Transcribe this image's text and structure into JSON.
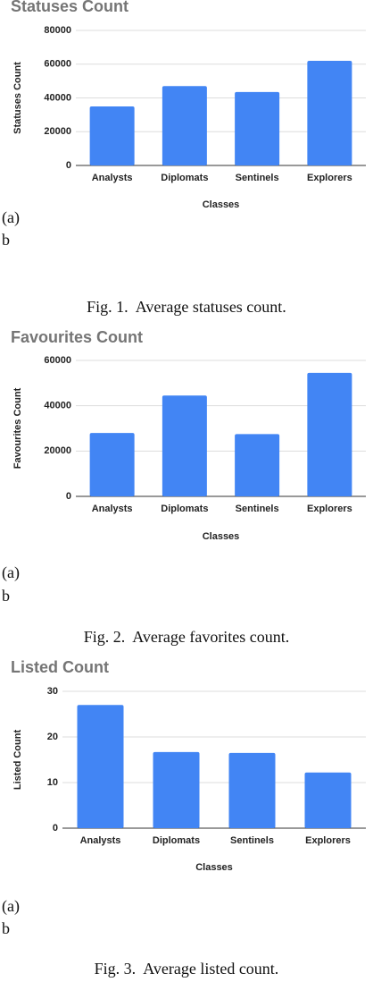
{
  "chart_data": [
    {
      "type": "bar",
      "title": "Statuses Count",
      "x_label": "Classes",
      "y_label": "Statuses Count",
      "categories": [
        "Analysts",
        "Diplomats",
        "Sentinels",
        "Explorers"
      ],
      "values": [
        35000,
        47000,
        43500,
        62000
      ],
      "color": "#4285f4",
      "ylim": [
        0,
        80000
      ],
      "yticks": [
        0,
        20000,
        40000,
        60000,
        80000
      ],
      "grid": true
    },
    {
      "type": "bar",
      "title": "Favourites Count",
      "x_label": "Classes",
      "y_label": "Favourites Count",
      "categories": [
        "Analysts",
        "Diplomats",
        "Sentinels",
        "Explorers"
      ],
      "values": [
        28000,
        44500,
        27500,
        54500
      ],
      "color": "#4285f4",
      "ylim": [
        0,
        60000
      ],
      "yticks": [
        0,
        20000,
        40000,
        60000
      ],
      "grid": true
    },
    {
      "type": "bar",
      "title": "Listed Count",
      "x_label": "Classes",
      "y_label": "Listed Count",
      "categories": [
        "Analysts",
        "Diplomats",
        "Sentinels",
        "Explorers"
      ],
      "values": [
        27,
        16.7,
        16.5,
        12.2
      ],
      "color": "#4285f4",
      "ylim": [
        0,
        30
      ],
      "yticks": [
        0,
        10,
        20,
        30
      ],
      "grid": true
    }
  ],
  "figures": [
    {
      "label_a": "(a)",
      "label_b": "b",
      "caption": "Fig. 1.  Average statuses count."
    },
    {
      "label_a": "(a)",
      "label_b": "b",
      "caption": "Fig. 2.  Average favorites count."
    },
    {
      "label_a": "(a)",
      "label_b": "b",
      "caption": "Fig. 3.  Average listed count."
    }
  ]
}
